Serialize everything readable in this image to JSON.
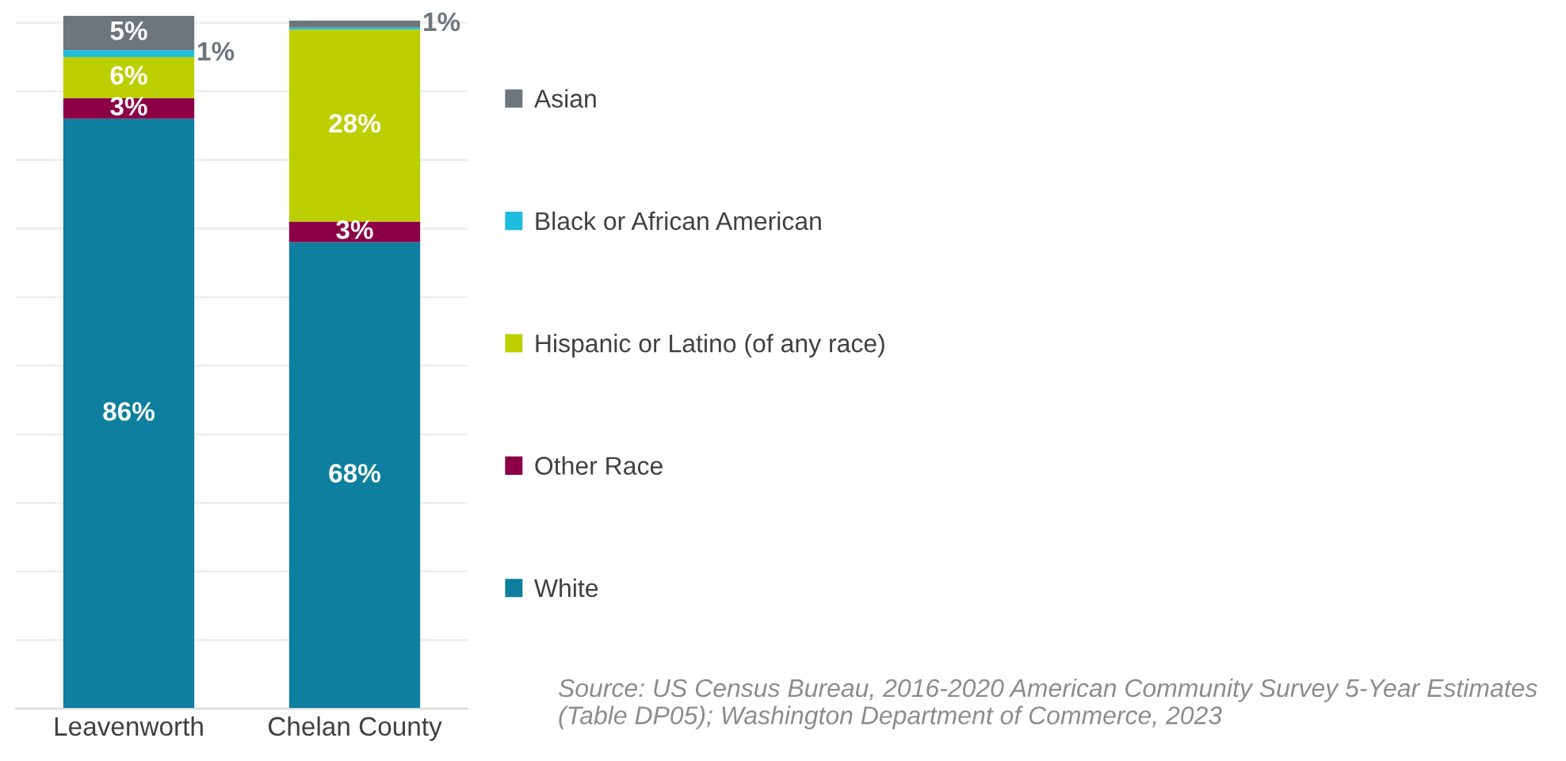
{
  "chart_data": {
    "type": "bar",
    "stacked": true,
    "categories": [
      "Leavenworth",
      "Chelan County"
    ],
    "series": [
      {
        "name": "White",
        "color": "#0e7f9e",
        "values": [
          86,
          68
        ],
        "value_labels": [
          "86%",
          "68%"
        ]
      },
      {
        "name": "Other Race",
        "color": "#8b0047",
        "values": [
          3,
          3
        ],
        "value_labels": [
          "3%",
          "3%"
        ]
      },
      {
        "name": "Hispanic or Latino (of any race)",
        "color": "#bccf00",
        "values": [
          6,
          28
        ],
        "value_labels": [
          "6%",
          "28%"
        ]
      },
      {
        "name": "Black or African American",
        "color": "#1ebde0",
        "values": [
          1,
          0.3
        ],
        "value_labels": [
          "1%",
          null
        ]
      },
      {
        "name": "Asian",
        "color": "#6d757d",
        "values": [
          5,
          1
        ],
        "value_labels": [
          "5%",
          "1%"
        ]
      }
    ],
    "ylim": [
      0,
      101
    ],
    "yticks": [
      {
        "value": 0,
        "label": null
      },
      {
        "value": 10,
        "label": null
      },
      {
        "value": 20,
        "label": null
      },
      {
        "value": 30,
        "label": null
      },
      {
        "value": 40,
        "label": null
      },
      {
        "value": 50,
        "label": null
      },
      {
        "value": 60,
        "label": null
      },
      {
        "value": 70,
        "label": null
      },
      {
        "value": 80,
        "label": null
      },
      {
        "value": 90,
        "label": null
      },
      {
        "value": 100,
        "label": null
      }
    ],
    "tick_labels": "x",
    "grid": "y",
    "legend": "right",
    "annotations": [
      "Source: US Census Bureau, 2016-2020 American Community Survey 5-Year Estimates (Table DP05); Washington Department of Commerce, 2023"
    ]
  }
}
